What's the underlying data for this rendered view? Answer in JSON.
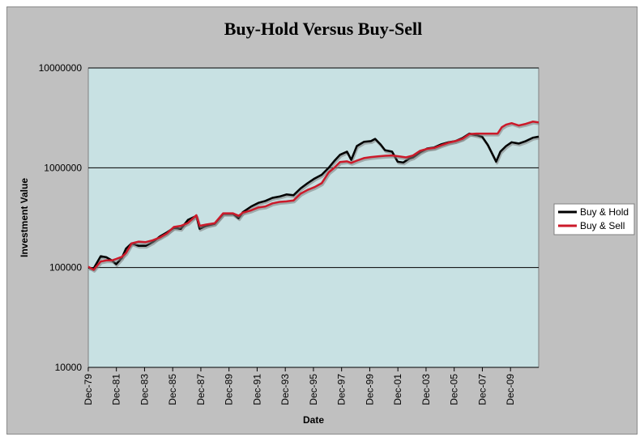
{
  "chart_data": {
    "type": "line",
    "title": "Buy-Hold Versus Buy-Sell",
    "xlabel": "Date",
    "ylabel": "Investment Value",
    "y_scale": "log",
    "ylim": [
      10000,
      10000000
    ],
    "y_ticks": [
      "10000",
      "100000",
      "1000000",
      "10000000"
    ],
    "xlim": [
      1979.92,
      2011.92
    ],
    "x_ticks": [
      "Dec-79",
      "Dec-81",
      "Dec-83",
      "Dec-85",
      "Dec-87",
      "Dec-89",
      "Dec-91",
      "Dec-93",
      "Dec-95",
      "Dec-97",
      "Dec-99",
      "Dec-01",
      "Dec-03",
      "Dec-05",
      "Dec-07",
      "Dec-09"
    ],
    "grid": "horizontal major",
    "plot_background": "#c8e1e3",
    "legend_position": "right",
    "series": [
      {
        "name": "Buy & Hold",
        "color": "#000000",
        "x": [
          1979.92,
          1980.3,
          1980.8,
          1981.2,
          1981.6,
          1981.9,
          1982.3,
          1982.6,
          1983.0,
          1983.5,
          1984.0,
          1984.5,
          1985.0,
          1985.5,
          1986.0,
          1986.5,
          1987.0,
          1987.6,
          1987.83,
          1988.3,
          1988.9,
          1989.5,
          1990.2,
          1990.6,
          1990.9,
          1991.5,
          1992.0,
          1992.5,
          1993.0,
          1993.5,
          1994.0,
          1994.5,
          1995.0,
          1995.5,
          1996.0,
          1996.5,
          1997.0,
          1997.4,
          1997.8,
          1998.3,
          1998.6,
          1999.0,
          1999.5,
          2000.0,
          2000.3,
          2000.7,
          2001.0,
          2001.5,
          2001.9,
          2002.3,
          2002.7,
          2003.0,
          2003.5,
          2004.0,
          2004.5,
          2005.0,
          2005.5,
          2006.0,
          2006.5,
          2007.0,
          2007.5,
          2007.9,
          2008.3,
          2008.6,
          2008.9,
          2009.2,
          2009.6,
          2010.0,
          2010.5,
          2011.0,
          2011.5,
          2011.92
        ],
        "values": [
          100000,
          98000,
          130000,
          127000,
          118000,
          108000,
          125000,
          155000,
          175000,
          165000,
          165000,
          180000,
          205000,
          225000,
          250000,
          245000,
          300000,
          330000,
          245000,
          262000,
          275000,
          345000,
          345000,
          312000,
          360000,
          410000,
          445000,
          465000,
          500000,
          515000,
          540000,
          530000,
          620000,
          700000,
          780000,
          850000,
          1000000,
          1170000,
          1350000,
          1450000,
          1200000,
          1650000,
          1820000,
          1850000,
          1950000,
          1700000,
          1500000,
          1450000,
          1150000,
          1130000,
          1230000,
          1270000,
          1430000,
          1560000,
          1600000,
          1720000,
          1800000,
          1850000,
          1980000,
          2200000,
          2120000,
          2050000,
          1700000,
          1400000,
          1150000,
          1450000,
          1650000,
          1800000,
          1750000,
          1850000,
          2000000,
          2050000
        ]
      },
      {
        "name": "Buy & Sell",
        "color": "#cc1a2a",
        "x": [
          1979.92,
          1980.3,
          1980.8,
          1981.2,
          1981.6,
          1981.9,
          1982.3,
          1982.6,
          1983.0,
          1983.5,
          1984.0,
          1984.5,
          1985.0,
          1985.5,
          1986.0,
          1986.5,
          1987.0,
          1987.6,
          1987.83,
          1988.3,
          1988.9,
          1989.5,
          1990.2,
          1990.6,
          1990.9,
          1991.5,
          1992.0,
          1992.5,
          1993.0,
          1993.5,
          1994.0,
          1994.5,
          1995.0,
          1995.5,
          1996.0,
          1996.5,
          1997.0,
          1997.4,
          1997.8,
          1998.3,
          1998.6,
          1999.0,
          1999.5,
          2000.0,
          2000.5,
          2001.0,
          2001.5,
          2002.0,
          2002.5,
          2003.0,
          2003.5,
          2004.0,
          2004.5,
          2005.0,
          2005.5,
          2006.0,
          2006.5,
          2007.0,
          2007.5,
          2008.0,
          2008.5,
          2009.0,
          2009.3,
          2009.6,
          2010.0,
          2010.5,
          2011.0,
          2011.5,
          2011.92
        ],
        "values": [
          102000,
          95000,
          115000,
          118000,
          118000,
          122000,
          128000,
          140000,
          175000,
          182000,
          180000,
          188000,
          200000,
          220000,
          255000,
          262000,
          280000,
          335000,
          262000,
          270000,
          278000,
          350000,
          350000,
          330000,
          355000,
          375000,
          400000,
          410000,
          440000,
          455000,
          460000,
          470000,
          550000,
          600000,
          640000,
          700000,
          900000,
          1000000,
          1140000,
          1160000,
          1120000,
          1180000,
          1250000,
          1280000,
          1300000,
          1320000,
          1330000,
          1300000,
          1270000,
          1330000,
          1480000,
          1550000,
          1580000,
          1680000,
          1780000,
          1850000,
          1950000,
          2180000,
          2200000,
          2200000,
          2200000,
          2200000,
          2550000,
          2700000,
          2800000,
          2650000,
          2750000,
          2900000,
          2850000
        ]
      }
    ]
  }
}
